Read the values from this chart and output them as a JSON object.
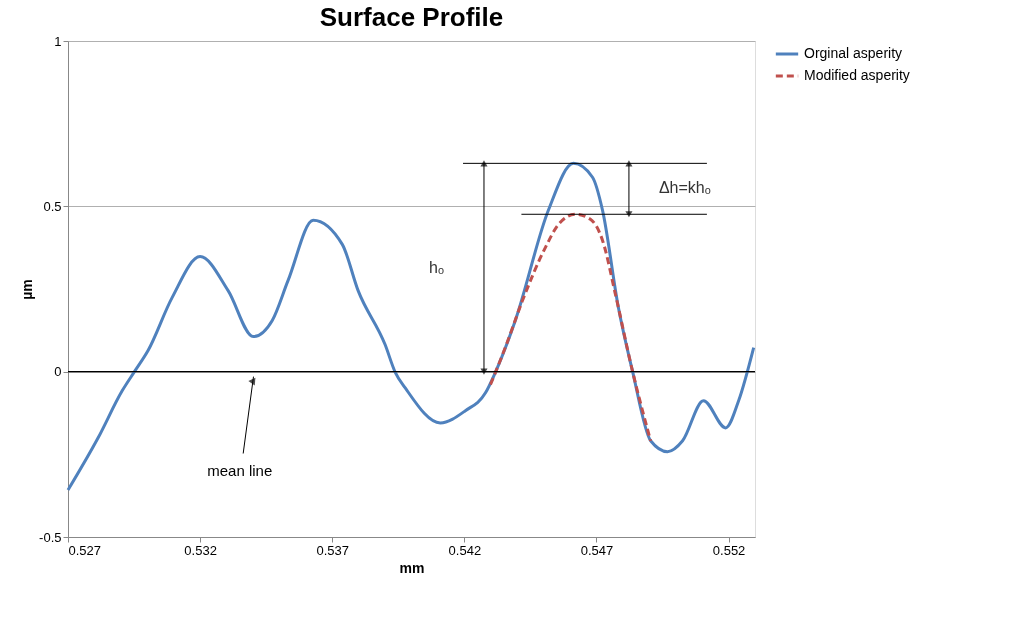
{
  "chart_data": {
    "type": "line",
    "title": "Surface Profile",
    "xlabel": "mm",
    "ylabel": "µm",
    "xlim": [
      0.527,
      0.553
    ],
    "xticks": [
      0.527,
      0.532,
      0.537,
      0.542,
      0.547,
      0.552
    ],
    "ylim": [
      -0.5,
      1
    ],
    "yticks": [
      -0.5,
      0,
      0.5,
      1
    ],
    "grid": "y",
    "legend": "right",
    "marker": "none",
    "series": [
      {
        "name": "Orginal asperity",
        "color": "#4f81bd",
        "line_style": "solid",
        "x": [
          0.527,
          0.52814,
          0.52905,
          0.52954,
          0.53003,
          0.53094,
          0.532,
          0.53306,
          0.53401,
          0.53473,
          0.53533,
          0.53628,
          0.53738,
          0.53798,
          0.539,
          0.53939,
          0.53977,
          0.54109,
          0.54204,
          0.5428,
          0.54317,
          0.54393,
          0.54518,
          0.54613,
          0.54685,
          0.54723,
          0.54783,
          0.54836,
          0.54905,
          0.54969,
          0.55026,
          0.55105,
          0.55189,
          0.55238,
          0.55295
        ],
        "values": [
          -0.358,
          -0.2,
          -0.058,
          0.003,
          0.064,
          0.224,
          0.348,
          0.245,
          0.106,
          0.155,
          0.276,
          0.458,
          0.385,
          0.245,
          0.082,
          -0.003,
          -0.05,
          -0.155,
          -0.118,
          -0.064,
          -0.003,
          0.155,
          0.488,
          0.63,
          0.588,
          0.488,
          0.194,
          0.003,
          -0.209,
          -0.242,
          -0.209,
          -0.088,
          -0.17,
          -0.088,
          0.073
        ]
      },
      {
        "name": "Modified asperity",
        "color": "#c0504d",
        "line_style": "dashed",
        "x": [
          0.54299,
          0.54355,
          0.5442,
          0.54507,
          0.54556,
          0.5462,
          0.54677,
          0.54723,
          0.54772,
          0.54836,
          0.54905
        ],
        "values": [
          -0.039,
          0.073,
          0.215,
          0.376,
          0.445,
          0.476,
          0.461,
          0.397,
          0.233,
          0.003,
          -0.209
        ]
      }
    ],
    "ref_lines": [
      {
        "axis": "y",
        "value": 0,
        "label": "mean line",
        "color": "#000000"
      }
    ],
    "annotations": [
      "hₒ",
      "Δh=khₒ"
    ]
  }
}
